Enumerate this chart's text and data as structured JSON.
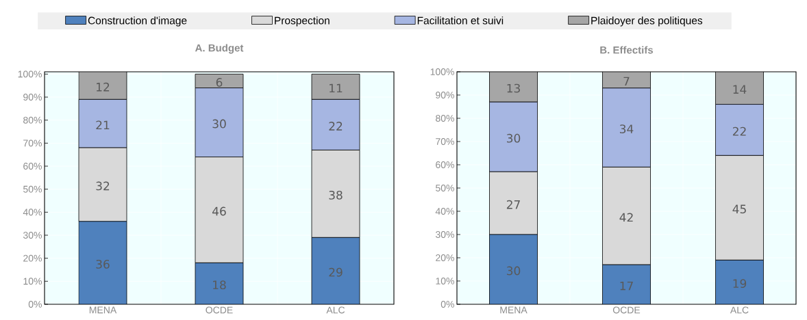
{
  "chart_data": [
    {
      "type": "bar",
      "title": "A. Budget",
      "stacked": true,
      "data_labels": true,
      "grid": true,
      "legend": "top",
      "categories": [
        "MENA",
        "OCDE",
        "ALC"
      ],
      "ylim": [
        0,
        101
      ],
      "yticks": [
        {
          "value": 0,
          "label": "0%"
        },
        {
          "value": 10,
          "label": "10%"
        },
        {
          "value": 20,
          "label": "20%"
        },
        {
          "value": 30,
          "label": "30%"
        },
        {
          "value": 40,
          "label": "40%"
        },
        {
          "value": 50,
          "label": "50%"
        },
        {
          "value": 60,
          "label": "60%"
        },
        {
          "value": 70,
          "label": "70%"
        },
        {
          "value": 80,
          "label": "80%"
        },
        {
          "value": 90,
          "label": "90%"
        },
        {
          "value": 100,
          "label": "100%"
        }
      ],
      "series": [
        {
          "name": "Construction d'image",
          "color": "#4f81bd",
          "values": [
            36,
            18,
            29
          ]
        },
        {
          "name": "Prospection",
          "color": "#d9d9d9",
          "values": [
            32,
            46,
            38
          ]
        },
        {
          "name": "Facilitation et suivi",
          "color": "#a6b6e2",
          "values": [
            21,
            30,
            22
          ]
        },
        {
          "name": "Plaidoyer des politiques",
          "color": "#a6a6a6",
          "values": [
            12,
            6,
            11
          ]
        }
      ]
    },
    {
      "type": "bar",
      "title": "B. Effectifs",
      "stacked": true,
      "data_labels": true,
      "grid": true,
      "categories": [
        "MENA",
        "OCDE",
        "ALC"
      ],
      "ylim": [
        0,
        100
      ],
      "yticks": [
        {
          "value": 0,
          "label": "0%"
        },
        {
          "value": 10,
          "label": "10%"
        },
        {
          "value": 20,
          "label": "20%"
        },
        {
          "value": 30,
          "label": "30%"
        },
        {
          "value": 40,
          "label": "40%"
        },
        {
          "value": 50,
          "label": "50%"
        },
        {
          "value": 60,
          "label": "60%"
        },
        {
          "value": 70,
          "label": "70%"
        },
        {
          "value": 80,
          "label": "80%"
        },
        {
          "value": 90,
          "label": "90%"
        },
        {
          "value": 100,
          "label": "100%"
        }
      ],
      "series": [
        {
          "color": "#4f81bd",
          "values": [
            30,
            17,
            19
          ]
        },
        {
          "color": "#d9d9d9",
          "values": [
            27,
            42,
            45
          ]
        },
        {
          "color": "#a6b6e2",
          "values": [
            30,
            34,
            22
          ]
        },
        {
          "color": "#a6a6a6",
          "values": [
            13,
            7,
            14
          ]
        }
      ]
    }
  ]
}
